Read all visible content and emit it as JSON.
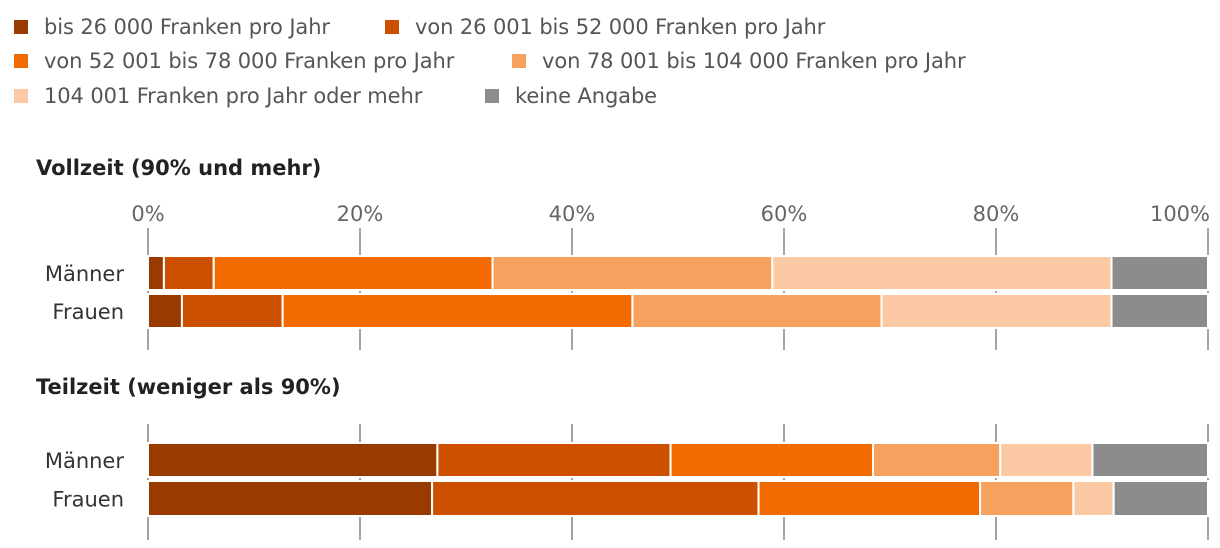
{
  "legend": [
    {
      "label": "bis 26 000 Franken pro Jahr",
      "color": "#993a00"
    },
    {
      "label": "von 26 001 bis 52 000 Franken pro Jahr",
      "color": "#cc5000"
    },
    {
      "label": "von 52 001 bis 78 000 Franken pro Jahr",
      "color": "#f26a00"
    },
    {
      "label": "von 78 001 bis 104 000 Franken pro Jahr",
      "color": "#f7a15f"
    },
    {
      "label": "104 001 Franken pro Jahr oder mehr",
      "color": "#fbcaa5"
    },
    {
      "label": "keine Angabe",
      "color": "#8c8c8c"
    }
  ],
  "chart_data": [
    {
      "type": "bar",
      "orientation": "horizontal-stacked",
      "title": "Vollzeit (90% und mehr)",
      "categories": [
        "Männer",
        "Frauen"
      ],
      "xlim": [
        0,
        100
      ],
      "xticks": [
        "0%",
        "20%",
        "40%",
        "60%",
        "80%",
        "100%"
      ],
      "grid": true,
      "series": [
        {
          "name": "bis 26 000 Franken pro Jahr",
          "values": [
            1.5,
            3.2
          ]
        },
        {
          "name": "von 26 001 bis 52 000 Franken pro Jahr",
          "values": [
            4.7,
            9.5
          ]
        },
        {
          "name": "von 52 001 bis 78 000 Franken pro Jahr",
          "values": [
            26.3,
            33.0
          ]
        },
        {
          "name": "von 78 001 bis 104 000 Franken pro Jahr",
          "values": [
            26.4,
            23.5
          ]
        },
        {
          "name": "104 001 Franken pro Jahr oder mehr",
          "values": [
            32.0,
            21.7
          ]
        },
        {
          "name": "keine Angabe",
          "values": [
            9.1,
            9.1
          ]
        }
      ]
    },
    {
      "type": "bar",
      "orientation": "horizontal-stacked",
      "title": "Teilzeit (weniger als 90%)",
      "categories": [
        "Männer",
        "Frauen"
      ],
      "xlim": [
        0,
        100
      ],
      "grid": true,
      "series": [
        {
          "name": "bis 26 000 Franken pro Jahr",
          "values": [
            27.3,
            26.8
          ]
        },
        {
          "name": "von 26 001 bis 52 000 Franken pro Jahr",
          "values": [
            22.0,
            30.8
          ]
        },
        {
          "name": "von 52 001 bis 78 000 Franken pro Jahr",
          "values": [
            19.1,
            20.9
          ]
        },
        {
          "name": "von 78 001 bis 104 000 Franken pro Jahr",
          "values": [
            12.0,
            8.8
          ]
        },
        {
          "name": "104 001 Franken pro Jahr oder mehr",
          "values": [
            8.7,
            3.8
          ]
        },
        {
          "name": "keine Angabe",
          "values": [
            10.9,
            8.9
          ]
        }
      ]
    }
  ]
}
